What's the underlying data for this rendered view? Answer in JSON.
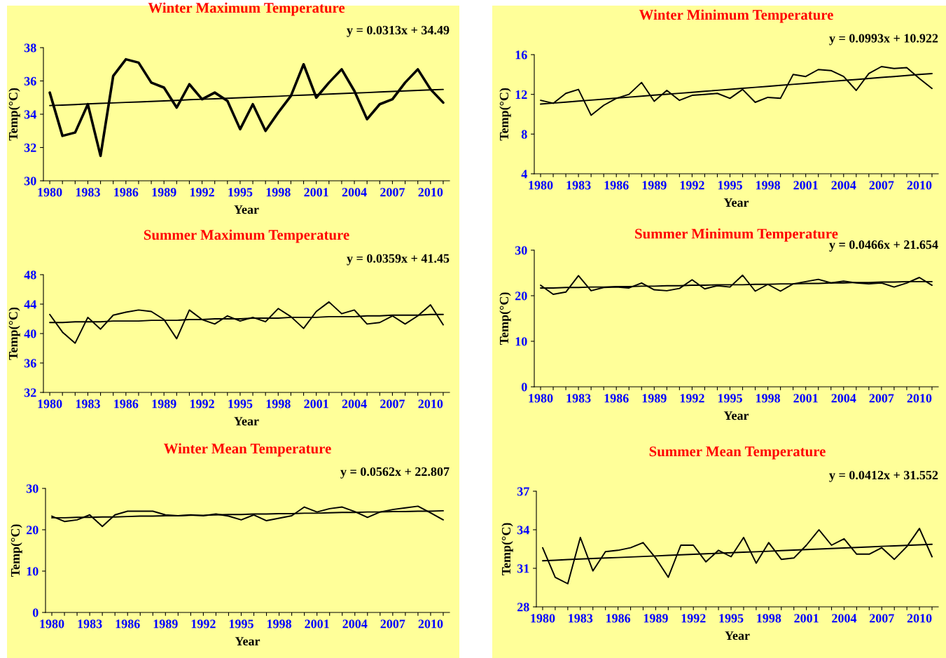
{
  "chart_data": [
    {
      "type": "line",
      "title": "Winter Maximum Temperature",
      "xlabel": "Year",
      "ylabel": "Temp(°C)",
      "annotations": [
        "y = 0.0313x + 34.49"
      ],
      "categories": [
        "1980",
        null,
        null,
        "1983",
        null,
        null,
        "1986",
        null,
        null,
        "1989",
        null,
        null,
        "1992",
        null,
        null,
        "1995",
        null,
        null,
        "1998",
        null,
        null,
        "2001",
        null,
        null,
        "2004",
        null,
        null,
        "2007",
        null,
        null,
        "2010",
        null
      ],
      "ylim": [
        30,
        38
      ],
      "yticks": [
        30,
        32,
        34,
        36,
        38
      ],
      "series": [
        {
          "color": "#000000",
          "values": [
            35.3,
            32.7,
            32.9,
            34.6,
            31.5,
            36.3,
            37.3,
            37.1,
            35.9,
            35.6,
            34.4,
            35.8,
            34.9,
            35.3,
            34.8,
            33.1,
            34.6,
            33.0,
            34.1,
            35.1,
            37.0,
            35.0,
            35.9,
            36.7,
            35.4,
            33.7,
            34.6,
            34.9,
            35.9,
            36.7,
            35.5,
            34.7
          ]
        },
        {
          "type": "line",
          "color": "#000000",
          "values": [
            34.52,
            34.55,
            34.58,
            34.62,
            34.65,
            34.68,
            34.71,
            34.74,
            34.77,
            34.8,
            34.83,
            34.87,
            34.9,
            34.93,
            34.96,
            34.99,
            35.02,
            35.05,
            35.08,
            35.12,
            35.15,
            35.18,
            35.21,
            35.24,
            35.27,
            35.3,
            35.34,
            35.37,
            35.4,
            35.43,
            35.46,
            35.49
          ]
        }
      ]
    },
    {
      "type": "line",
      "title": "Winter Minimum Temperature",
      "xlabel": "Year",
      "ylabel": "Temp(°C)",
      "annotations": [
        "y = 0.0993x + 10.922"
      ],
      "categories": [
        "1980",
        null,
        null,
        "1983",
        null,
        null,
        "1986",
        null,
        null,
        "1989",
        null,
        null,
        "1992",
        null,
        null,
        "1995",
        null,
        null,
        "1998",
        null,
        null,
        "2001",
        null,
        null,
        "2004",
        null,
        null,
        "2007",
        null,
        null,
        "2010",
        null
      ],
      "ylim": [
        4,
        16
      ],
      "yticks": [
        4,
        8,
        12,
        16
      ],
      "series": [
        {
          "color": "#000000",
          "values": [
            11.4,
            11.1,
            12.1,
            12.5,
            9.9,
            10.9,
            11.6,
            12.0,
            13.2,
            11.3,
            12.4,
            11.4,
            11.9,
            12.0,
            12.1,
            11.6,
            12.5,
            11.2,
            11.7,
            11.6,
            14.0,
            13.8,
            14.5,
            14.4,
            13.8,
            12.4,
            14.1,
            14.8,
            14.6,
            14.7,
            13.6,
            12.6
          ]
        },
        {
          "type": "line",
          "color": "#000000",
          "values": [
            11.02,
            11.12,
            11.22,
            11.32,
            11.42,
            11.52,
            11.62,
            11.72,
            11.82,
            11.92,
            12.01,
            12.11,
            12.21,
            12.31,
            12.41,
            12.51,
            12.61,
            12.71,
            12.81,
            12.91,
            13.01,
            13.11,
            13.21,
            13.31,
            13.4,
            13.5,
            13.6,
            13.7,
            13.8,
            13.9,
            14.0,
            14.1
          ]
        }
      ]
    },
    {
      "type": "line",
      "title": "Summer Maximum Temperature",
      "xlabel": "Year",
      "ylabel": "Temp(°C)",
      "annotations": [
        "y = 0.0359x + 41.45"
      ],
      "categories": [
        "1980",
        null,
        null,
        "1983",
        null,
        null,
        "1986",
        null,
        null,
        "1989",
        null,
        null,
        "1992",
        null,
        null,
        "1995",
        null,
        null,
        "1998",
        null,
        null,
        "2001",
        null,
        null,
        "2004",
        null,
        null,
        "2007",
        null,
        null,
        "2010",
        null
      ],
      "ylim": [
        32,
        48
      ],
      "yticks": [
        32,
        36,
        40,
        44,
        48
      ],
      "series": [
        {
          "color": "#000000",
          "values": [
            42.6,
            40.2,
            38.7,
            42.2,
            40.6,
            42.5,
            42.9,
            43.2,
            43.0,
            41.9,
            39.3,
            43.2,
            41.9,
            41.3,
            42.4,
            41.7,
            42.2,
            41.6,
            43.4,
            42.3,
            40.7,
            43.0,
            44.3,
            42.7,
            43.2,
            41.3,
            41.5,
            42.4,
            41.3,
            42.4,
            43.9,
            41.2
          ]
        },
        {
          "type": "line",
          "color": "#000000",
          "values": [
            41.5,
            41.5,
            41.6,
            41.6,
            41.6,
            41.7,
            41.7,
            41.7,
            41.8,
            41.8,
            41.8,
            41.9,
            41.9,
            42.0,
            42.0,
            42.0,
            42.1,
            42.1,
            42.1,
            42.2,
            42.2,
            42.2,
            42.3,
            42.3,
            42.3,
            42.4,
            42.4,
            42.5,
            42.5,
            42.5,
            42.6,
            42.6
          ]
        }
      ]
    },
    {
      "type": "line",
      "title": "Summer Minimum Temperature",
      "xlabel": "Year",
      "ylabel": "Temp(°C)",
      "annotations": [
        "y = 0.0466x + 21.654"
      ],
      "categories": [
        "1980",
        null,
        null,
        "1983",
        null,
        null,
        "1986",
        null,
        null,
        "1989",
        null,
        null,
        "1992",
        null,
        null,
        "1995",
        null,
        null,
        "1998",
        null,
        null,
        "2001",
        null,
        null,
        "2004",
        null,
        null,
        "2007",
        null,
        null,
        "2010",
        null
      ],
      "ylim": [
        0,
        30
      ],
      "yticks": [
        0,
        10,
        20,
        30
      ],
      "series": [
        {
          "color": "#000000",
          "values": [
            22.3,
            20.3,
            20.8,
            24.4,
            21.1,
            21.8,
            21.9,
            21.7,
            22.8,
            21.3,
            21.1,
            21.6,
            23.5,
            21.5,
            22.2,
            21.9,
            24.5,
            21.0,
            22.5,
            21.0,
            22.6,
            23.1,
            23.6,
            22.8,
            23.2,
            22.8,
            22.6,
            22.8,
            21.9,
            22.8,
            24.0,
            22.3
          ]
        },
        {
          "type": "line",
          "color": "#000000",
          "values": [
            21.7,
            21.7,
            21.8,
            21.8,
            21.9,
            21.9,
            22.0,
            22.0,
            22.1,
            22.1,
            22.2,
            22.2,
            22.3,
            22.3,
            22.4,
            22.4,
            22.4,
            22.5,
            22.5,
            22.6,
            22.6,
            22.7,
            22.7,
            22.8,
            22.8,
            22.9,
            22.9,
            23.0,
            23.0,
            23.1,
            23.1,
            23.1
          ]
        }
      ]
    },
    {
      "type": "line",
      "title": "Winter Mean Temperature",
      "xlabel": "Year",
      "ylabel": "Temp(°C)",
      "annotations": [
        "y = 0.0562x + 22.807"
      ],
      "categories": [
        "1980",
        null,
        null,
        "1983",
        null,
        null,
        "1986",
        null,
        null,
        "1989",
        null,
        null,
        "1992",
        null,
        null,
        "1995",
        null,
        null,
        "1998",
        null,
        null,
        "2001",
        null,
        null,
        "2004",
        null,
        null,
        "2007",
        null,
        null,
        "2010",
        null
      ],
      "ylim": [
        0,
        30
      ],
      "yticks": [
        0,
        10,
        20,
        30
      ],
      "series": [
        {
          "color": "#000000",
          "values": [
            23.3,
            22.0,
            22.4,
            23.6,
            20.8,
            23.6,
            24.5,
            24.5,
            24.5,
            23.6,
            23.4,
            23.6,
            23.4,
            23.8,
            23.3,
            22.4,
            23.6,
            22.2,
            22.8,
            23.4,
            25.5,
            24.3,
            25.1,
            25.5,
            24.4,
            23.0,
            24.3,
            24.9,
            25.3,
            25.7,
            24.1,
            22.4
          ]
        },
        {
          "type": "line",
          "color": "#000000",
          "values": [
            22.9,
            22.9,
            23.0,
            23.0,
            23.1,
            23.1,
            23.2,
            23.3,
            23.3,
            23.4,
            23.4,
            23.5,
            23.5,
            23.6,
            23.7,
            23.7,
            23.8,
            23.8,
            23.9,
            23.9,
            24.0,
            24.0,
            24.1,
            24.2,
            24.2,
            24.3,
            24.3,
            24.4,
            24.4,
            24.5,
            24.5,
            24.6
          ]
        }
      ]
    },
    {
      "type": "line",
      "title": "Summer Mean Temperature",
      "xlabel": "Year",
      "ylabel": "Temp(°C)",
      "annotations": [
        "y = 0.0412x + 31.552"
      ],
      "categories": [
        "1980",
        null,
        null,
        "1983",
        null,
        null,
        "1986",
        null,
        null,
        "1989",
        null,
        null,
        "1992",
        null,
        null,
        "1995",
        null,
        null,
        "1998",
        null,
        null,
        "2001",
        null,
        null,
        "2004",
        null,
        null,
        "2007",
        null,
        null,
        "2010",
        null
      ],
      "ylim": [
        28,
        37
      ],
      "yticks": [
        28,
        31,
        34,
        37
      ],
      "series": [
        {
          "color": "#000000",
          "values": [
            32.6,
            30.3,
            29.8,
            33.4,
            30.8,
            32.3,
            32.4,
            32.6,
            33.0,
            31.8,
            30.3,
            32.8,
            32.8,
            31.5,
            32.4,
            31.9,
            33.4,
            31.4,
            33.0,
            31.7,
            31.8,
            32.8,
            34.0,
            32.8,
            33.3,
            32.1,
            32.1,
            32.6,
            31.7,
            32.7,
            34.1,
            31.9
          ]
        },
        {
          "type": "line",
          "color": "#000000",
          "values": [
            31.59,
            31.63,
            31.68,
            31.72,
            31.76,
            31.8,
            31.84,
            31.88,
            31.92,
            31.96,
            32.01,
            32.05,
            32.09,
            32.13,
            32.17,
            32.21,
            32.25,
            32.29,
            32.33,
            32.38,
            32.42,
            32.46,
            32.5,
            32.54,
            32.58,
            32.62,
            32.66,
            32.71,
            32.75,
            32.79,
            32.83,
            32.87
          ]
        }
      ]
    }
  ]
}
